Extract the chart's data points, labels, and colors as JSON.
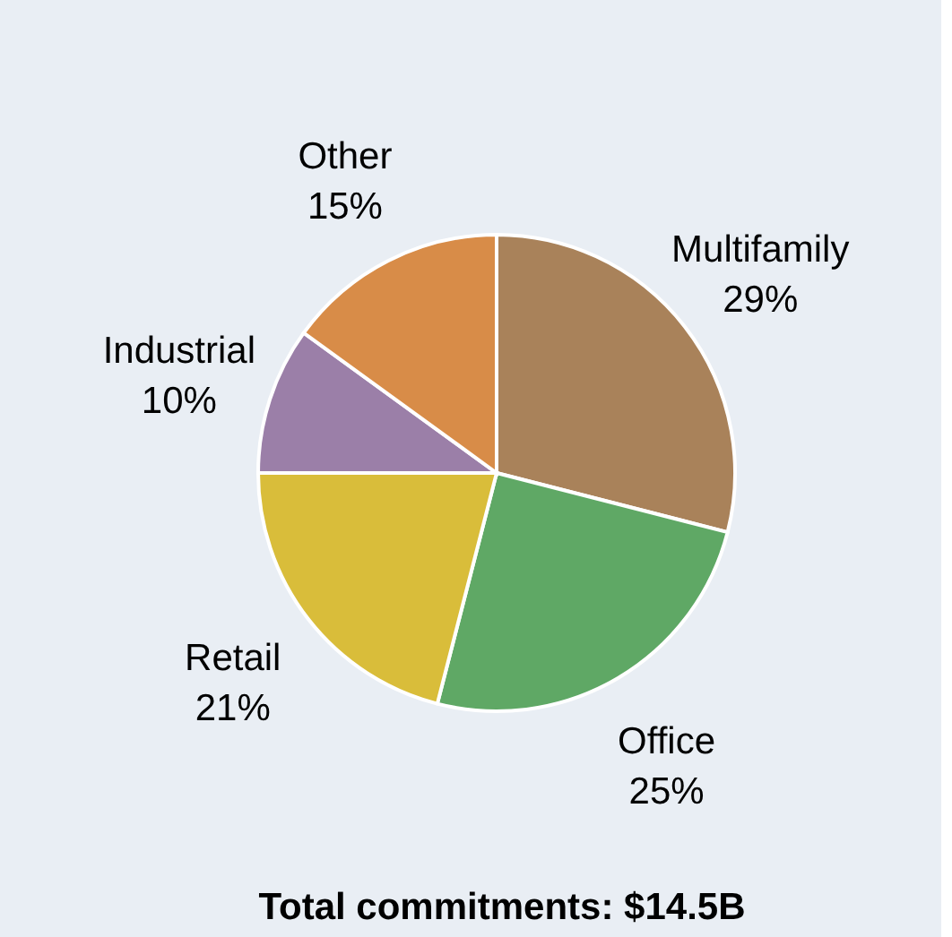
{
  "chart_data": {
    "type": "pie",
    "title": "Total commitments: $14.5B",
    "categories": [
      "Multifamily",
      "Office",
      "Retail",
      "Industrial",
      "Other"
    ],
    "values": [
      29,
      25,
      21,
      10,
      15
    ],
    "colors": [
      "#a9825a",
      "#5fa865",
      "#d9bd3a",
      "#9b7fa8",
      "#d88c48"
    ],
    "value_labels": [
      "29%",
      "25%",
      "21%",
      "10%",
      "15%"
    ]
  }
}
